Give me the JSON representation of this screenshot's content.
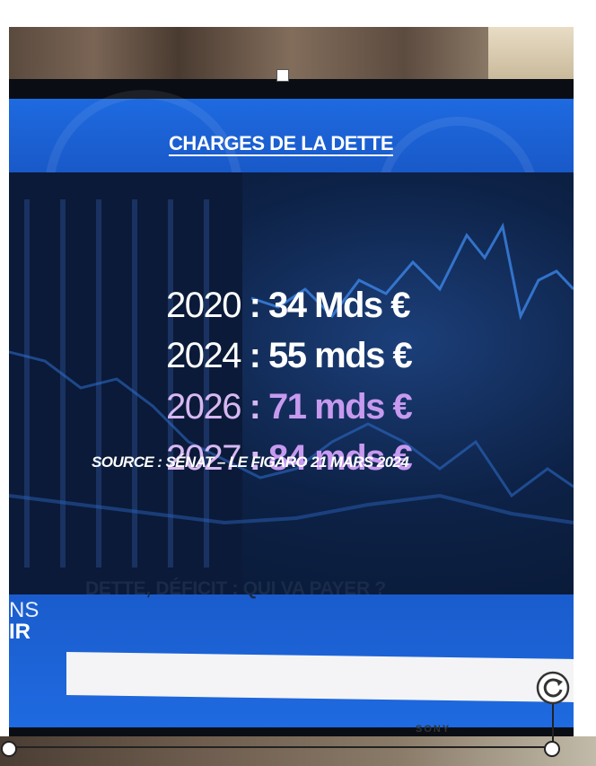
{
  "tv": {
    "title": "CHARGES DE LA DETTE",
    "rows": [
      {
        "year": "2020",
        "sep": " : ",
        "value": "34 Mds €"
      },
      {
        "year": "2024",
        "sep": " : ",
        "value": "55 mds €"
      },
      {
        "year": "2026",
        "sep": " : ",
        "value": "71 mds €"
      },
      {
        "year": "2027",
        "sep": " : ",
        "value": "84 mds €"
      }
    ],
    "source": "SOURCE : SÉNAT – LE FIGARO 21 MARS 2024",
    "logo_line1": "NS",
    "logo_line2": "IR",
    "banner": "DETTE, DÉFICIT : QUI VA PAYER ?",
    "brand": "SONY"
  },
  "colors": {
    "screen_blue": "#1b5fd1",
    "highlight_purple": "#c79af0"
  },
  "icons": {
    "rotate": "rotate-icon",
    "resize_handles": "resize-handle"
  }
}
